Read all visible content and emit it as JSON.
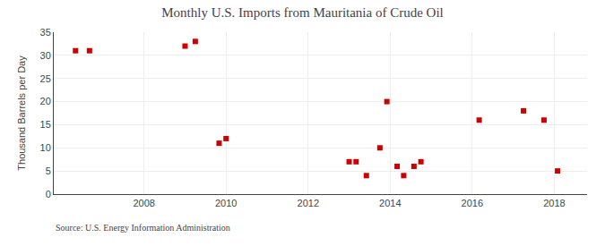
{
  "chart_data": {
    "type": "scatter",
    "title": "Monthly U.S. Imports from Mauritania of Crude Oil",
    "ylabel": "Thousand Barrels per Day",
    "source": "Source: U.S. Energy Information Administration",
    "x": [
      2006.33,
      2006.67,
      2009.0,
      2009.25,
      2009.83,
      2010.0,
      2013.0,
      2013.17,
      2013.42,
      2013.75,
      2013.92,
      2014.17,
      2014.33,
      2014.58,
      2014.75,
      2016.17,
      2017.25,
      2017.75,
      2018.08
    ],
    "values": [
      31,
      31,
      32,
      33,
      11,
      12,
      7,
      7,
      4,
      10,
      20,
      6,
      4,
      6,
      7,
      16,
      18,
      16,
      5
    ],
    "color": "#cc0000",
    "marker": "square",
    "xlim": [
      2005.8,
      2018.8
    ],
    "xticks": [
      2008,
      2010,
      2012,
      2014,
      2016,
      2018
    ],
    "ylim": [
      0,
      35
    ],
    "yticks": [
      0,
      5,
      10,
      15,
      20,
      25,
      30,
      35
    ],
    "grid": true
  }
}
